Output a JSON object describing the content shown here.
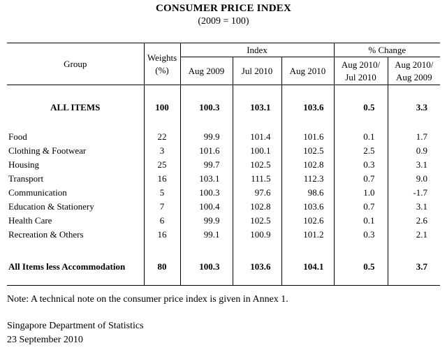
{
  "title": "CONSUMER PRICE INDEX",
  "subtitle": "(2009 = 100)",
  "headers": {
    "group": "Group",
    "weights_line1": "Weights",
    "weights_line2": "(%)",
    "index": "Index",
    "pct_change": "% Change",
    "aug2009": "Aug 2009",
    "jul2010": "Jul 2010",
    "aug2010": "Aug 2010",
    "pc1_line1": "Aug 2010/",
    "pc1_line2": "Jul 2010",
    "pc2_line1": "Aug 2010/",
    "pc2_line2": "Aug 2009"
  },
  "all_items": {
    "group": "ALL ITEMS",
    "weight": "100",
    "aug2009": "100.3",
    "jul2010": "103.1",
    "aug2010": "103.6",
    "pc1": "0.5",
    "pc2": "3.3"
  },
  "rows": [
    {
      "group": "Food",
      "weight": "22",
      "aug2009": "99.9",
      "jul2010": "101.4",
      "aug2010": "101.6",
      "pc1": "0.1",
      "pc2": "1.7"
    },
    {
      "group": "Clothing & Footwear",
      "weight": "3",
      "aug2009": "101.6",
      "jul2010": "100.1",
      "aug2010": "102.5",
      "pc1": "2.5",
      "pc2": "0.9"
    },
    {
      "group": "Housing",
      "weight": "25",
      "aug2009": "99.7",
      "jul2010": "102.5",
      "aug2010": "102.8",
      "pc1": "0.3",
      "pc2": "3.1"
    },
    {
      "group": "Transport",
      "weight": "16",
      "aug2009": "103.1",
      "jul2010": "111.5",
      "aug2010": "112.3",
      "pc1": "0.7",
      "pc2": "9.0"
    },
    {
      "group": "Communication",
      "weight": "5",
      "aug2009": "100.3",
      "jul2010": "97.6",
      "aug2010": "98.6",
      "pc1": "1.0",
      "pc2": "-1.7"
    },
    {
      "group": "Education & Stationery",
      "weight": "7",
      "aug2009": "100.4",
      "jul2010": "102.8",
      "aug2010": "103.6",
      "pc1": "0.7",
      "pc2": "3.1"
    },
    {
      "group": "Health Care",
      "weight": "6",
      "aug2009": "99.9",
      "jul2010": "102.5",
      "aug2010": "102.6",
      "pc1": "0.1",
      "pc2": "2.6"
    },
    {
      "group": "Recreation & Others",
      "weight": "16",
      "aug2009": "99.1",
      "jul2010": "100.9",
      "aug2010": "101.2",
      "pc1": "0.3",
      "pc2": "2.1"
    }
  ],
  "less_accommodation": {
    "group": "All Items less Accommodation",
    "weight": "80",
    "aug2009": "100.3",
    "jul2010": "103.6",
    "aug2010": "104.1",
    "pc1": "0.5",
    "pc2": "3.7"
  },
  "note": "Note: A technical note on the consumer price index is given in Annex 1.",
  "source": "Singapore Department of Statistics",
  "date": "23 September 2010"
}
